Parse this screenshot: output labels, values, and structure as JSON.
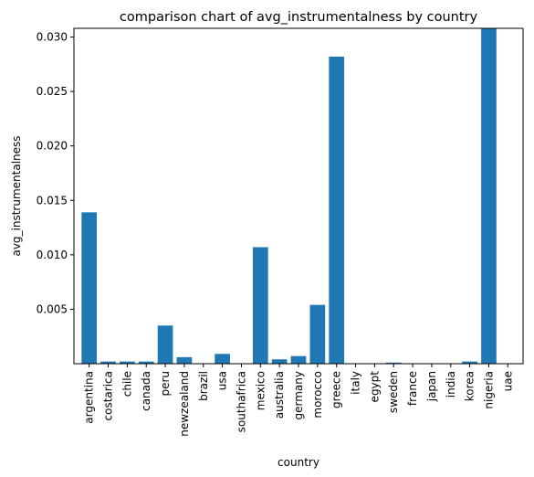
{
  "chart_data": {
    "type": "bar",
    "title": "comparison chart of avg_instrumentalness by country",
    "xlabel": "country",
    "ylabel": "avg_instrumentalness",
    "categories": [
      "argentina",
      "costarica",
      "chile",
      "canada",
      "peru",
      "newzealand",
      "brazil",
      "usa",
      "southafrica",
      "mexico",
      "australia",
      "germany",
      "morocco",
      "greece",
      "italy",
      "egypt",
      "sweden",
      "france",
      "japan",
      "india",
      "korea",
      "nigeria",
      "uae"
    ],
    "values": [
      0.0139,
      0.0002,
      0.0002,
      0.0002,
      0.0035,
      0.0006,
      0.0,
      0.0009,
      0.0,
      0.0107,
      0.0004,
      0.0007,
      0.0054,
      0.0282,
      0.0,
      0.0,
      0.0001,
      0.0,
      0.0,
      0.0,
      0.0002,
      0.0308,
      0.0
    ],
    "yticks": [
      "0.005",
      "0.010",
      "0.015",
      "0.020",
      "0.025",
      "0.030"
    ],
    "ylim": [
      0,
      0.0308
    ],
    "bar_color": "#1f77b4",
    "grid": false
  }
}
